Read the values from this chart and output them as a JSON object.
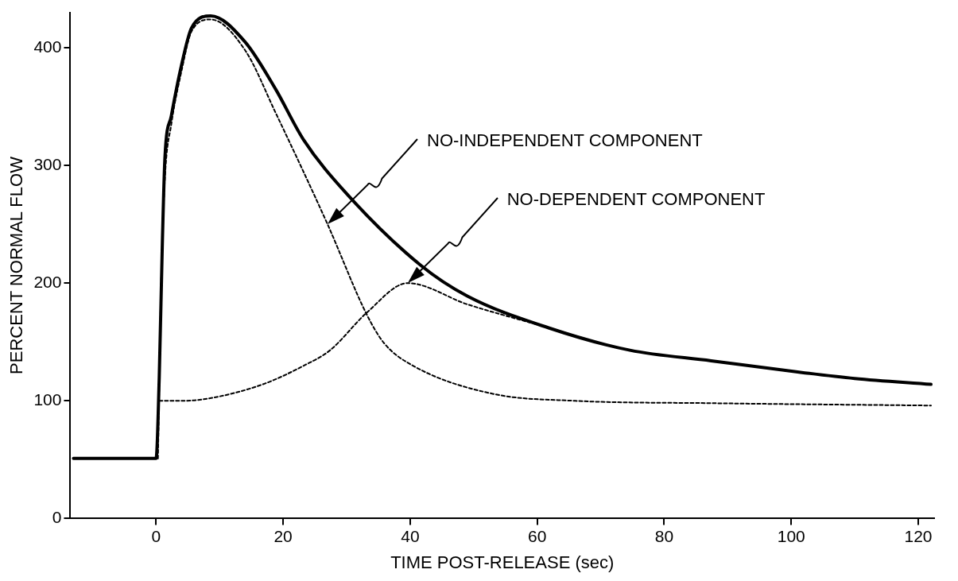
{
  "chart_data": {
    "type": "line",
    "xlabel": "TIME POST-RELEASE (sec)",
    "ylabel": "PERCENT NORMAL FLOW",
    "xlim": [
      -13.5,
      122.5
    ],
    "ylim": [
      0,
      430
    ],
    "xticks": [
      0,
      20,
      40,
      60,
      80,
      100,
      120
    ],
    "yticks": [
      0,
      100,
      200,
      300,
      400
    ],
    "grid": false,
    "legend": false,
    "marker": "none",
    "series": [
      {
        "color": "#000000",
        "line_style": "solid",
        "x": [
          -13,
          0,
          0.5,
          1,
          1.4,
          2.4,
          4,
          5.6,
          8.6,
          14,
          18.8,
          23.2,
          30,
          41.7,
          49,
          61.8,
          74.6,
          87.4,
          100.3,
          110,
          122
        ],
        "values": [
          51,
          51,
          120,
          236,
          307,
          342,
          385,
          417,
          427,
          405,
          365,
          322,
          276,
          215,
          189,
          162,
          143,
          134,
          125,
          119,
          114
        ]
      },
      {
        "color": "#000000",
        "line_style": "dotted",
        "x": [
          0.3,
          0.8,
          1.4,
          2.4,
          4,
          5.6,
          8.6,
          14,
          18.8,
          27,
          33.2,
          35.9,
          40.4,
          53,
          66,
          87.4,
          122
        ],
        "values": [
          51,
          200,
          290,
          335,
          380,
          414,
          424,
          398,
          345,
          250,
          173,
          149,
          130,
          106,
          100,
          98,
          96
        ]
      },
      {
        "color": "#000000",
        "line_style": "dotted",
        "x": [
          0.5,
          4,
          8.3,
          16.8,
          23.3,
          27.4,
          33.2,
          39.6,
          49,
          61.8,
          68
        ],
        "values": [
          100,
          100,
          102,
          114,
          130,
          143,
          175,
          200,
          182,
          162,
          152
        ]
      }
    ],
    "annotations": [
      {
        "text": "NO-INDEPENDENT COMPONENT",
        "x": 27,
        "y": 250
      },
      {
        "text": "NO-DEPENDENT COMPONENT",
        "x": 39.6,
        "y": 200
      }
    ]
  }
}
